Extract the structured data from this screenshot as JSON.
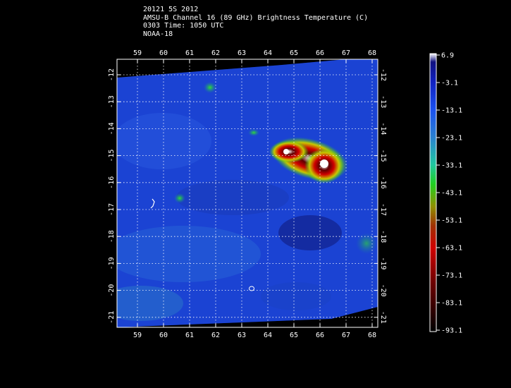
{
  "header": {
    "line1": "20121 5S 2012",
    "line2": "AMSU-B Channel 16 (89 GHz) Brightness Temperature (C)",
    "line3": "0303 Time: 1050 UTC",
    "line4": "NOAA-18"
  },
  "map": {
    "lon_ticks": [
      "59",
      "60",
      "61",
      "62",
      "63",
      "64",
      "65",
      "66",
      "67",
      "68"
    ],
    "lat_ticks": [
      "-12",
      "-13",
      "-14",
      "-15",
      "-16",
      "-17",
      "-18",
      "-19",
      "-20",
      "-21"
    ]
  },
  "colorbar": {
    "labels": [
      "6.9",
      "-3.1",
      "-13.1",
      "-23.1",
      "-33.1",
      "-43.1",
      "-53.1",
      "-63.1",
      "-73.1",
      "-83.1",
      "-93.1"
    ],
    "colors": [
      "#ffffff",
      "#1010a0",
      "#1a3cf0",
      "#2a7ad0",
      "#1ec8a0",
      "#22d020",
      "#a0a000",
      "#c00000",
      "#800000",
      "#400000",
      "#000000"
    ]
  }
}
